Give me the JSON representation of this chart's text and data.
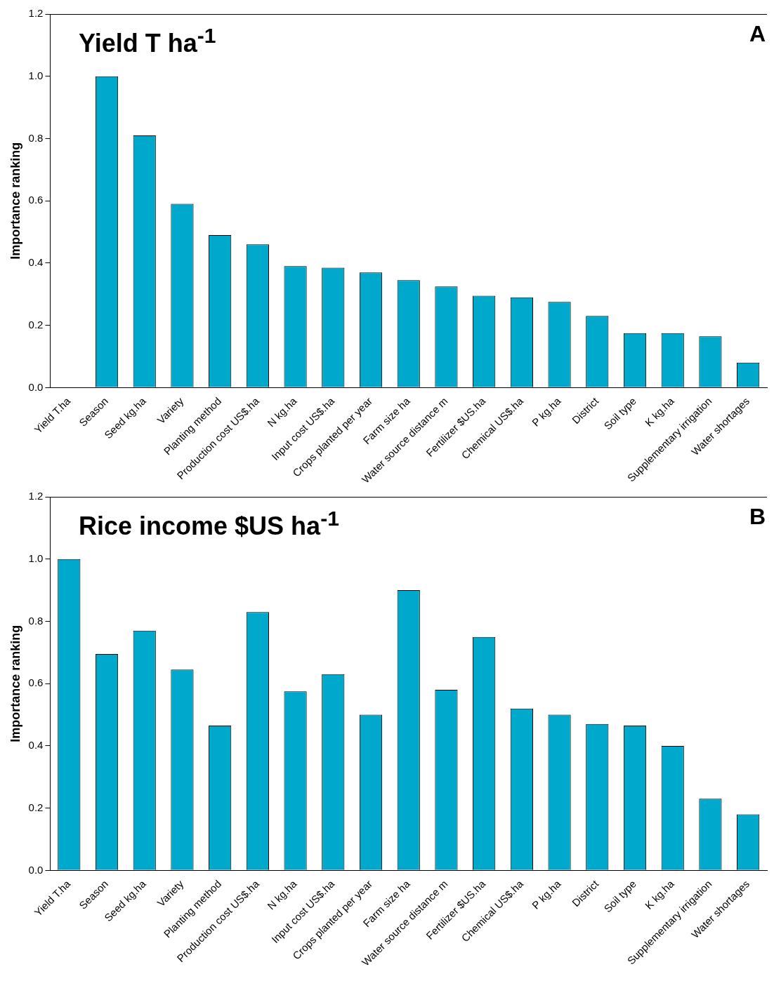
{
  "chart_data": [
    {
      "type": "bar",
      "title": "Yield T ha$^{-1}$",
      "annotations": [
        "A"
      ],
      "ylabel": "Importance ranking",
      "color": "#00a8cc",
      "categories": [
        "Yield T.ha",
        "Season",
        "Seed kg.ha",
        "Variety",
        "Planting method",
        "Production cost US$.ha",
        "N kg.ha",
        "Input cost US$.ha",
        "Crops planted per year",
        "Farm size ha",
        "Water source distance m",
        "Fertilizer $US.ha",
        "Chemical US$.ha",
        "P kg.ha",
        "District",
        "Soil type",
        "K kg.ha",
        "Supplementary irrigation",
        "Water shortages"
      ],
      "values": [
        0,
        1.0,
        0.81,
        0.59,
        0.49,
        0.46,
        0.39,
        0.385,
        0.37,
        0.345,
        0.325,
        0.295,
        0.29,
        0.275,
        0.23,
        0.175,
        0.175,
        0.165,
        0.08
      ],
      "ylim": [
        0,
        1.2
      ],
      "yticks": [
        {
          "value": 0,
          "label": "0.0"
        },
        0.2,
        0.4,
        0.6,
        0.8,
        {
          "value": 1,
          "label": "1.0"
        },
        {
          "value": 1.2,
          "label": "1.2"
        }
      ],
      "grid": false,
      "legend": false
    },
    {
      "type": "bar",
      "title": "Rice income $US ha$^{-1}$",
      "annotations": [
        "B"
      ],
      "ylabel": "Importance ranking",
      "color": "#00a8cc",
      "categories": [
        "Yield T.ha",
        "Season",
        "Seed kg.ha",
        "Variety",
        "Planting method",
        "Production cost US$.ha",
        "N kg.ha",
        "Input cost US$.ha",
        "Crops planted per year",
        "Farm size ha",
        "Water source distance m",
        "Fertilizer $US.ha",
        "Chemical US$.ha",
        "P kg.ha",
        "District",
        "Soil type",
        "K kg.ha",
        "Supplementary irrigation",
        "Water shortages"
      ],
      "values": [
        1.0,
        0.695,
        0.77,
        0.645,
        0.465,
        0.83,
        0.575,
        0.63,
        0.5,
        0.9,
        0.58,
        0.75,
        0.52,
        0.5,
        0.47,
        0.465,
        0.4,
        0.23,
        0.18
      ],
      "ylim": [
        0,
        1.2
      ],
      "yticks": [
        {
          "value": 0,
          "label": "0.0"
        },
        0.2,
        0.4,
        0.6,
        0.8,
        {
          "value": 1,
          "label": "1.0"
        },
        {
          "value": 1.2,
          "label": "1.2"
        }
      ],
      "grid": false,
      "legend": false
    }
  ]
}
